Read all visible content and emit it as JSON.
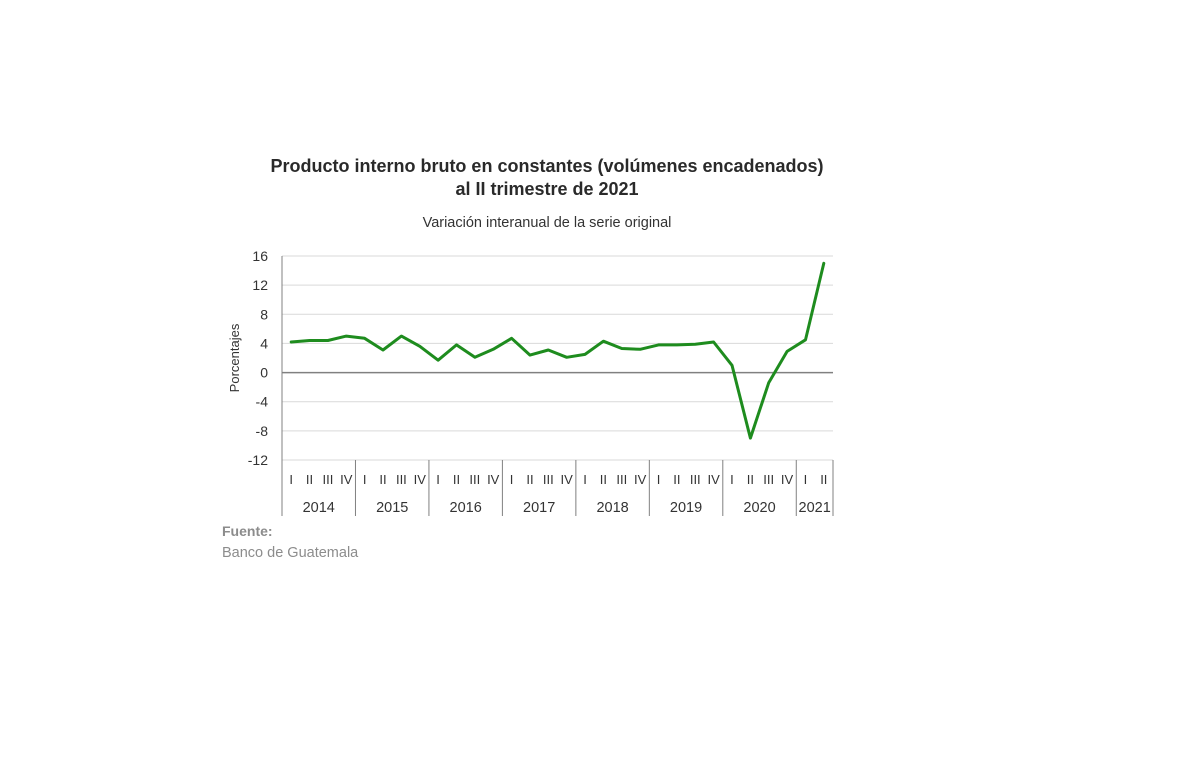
{
  "chart_data": {
    "type": "line",
    "title_line1": "Producto interno bruto en constantes (volúmenes encadenados)",
    "title_line2": "al II trimestre de 2021",
    "subtitle": "Variación interanual de la serie original",
    "ylabel": "Porcentajes",
    "ylim": [
      -12,
      16
    ],
    "yticks": [
      "16",
      "12",
      "8",
      "4",
      "0",
      "-4",
      "-8",
      "-12"
    ],
    "quarter_labels": [
      "I",
      "II",
      "III",
      "IV"
    ],
    "years": [
      "2014",
      "2015",
      "2016",
      "2017",
      "2018",
      "2019",
      "2020",
      "2021"
    ],
    "x": [
      "2014-I",
      "2014-II",
      "2014-III",
      "2014-IV",
      "2015-I",
      "2015-II",
      "2015-III",
      "2015-IV",
      "2016-I",
      "2016-II",
      "2016-III",
      "2016-IV",
      "2017-I",
      "2017-II",
      "2017-III",
      "2017-IV",
      "2018-I",
      "2018-II",
      "2018-III",
      "2018-IV",
      "2019-I",
      "2019-II",
      "2019-III",
      "2019-IV",
      "2020-I",
      "2020-II",
      "2020-III",
      "2020-IV",
      "2021-I",
      "2021-II"
    ],
    "series": [
      {
        "values": [
          4.2,
          4.4,
          4.4,
          5.0,
          4.7,
          3.1,
          5.0,
          3.6,
          1.7,
          3.8,
          2.1,
          3.2,
          4.7,
          2.4,
          3.1,
          2.1,
          2.5,
          4.3,
          3.3,
          3.2,
          3.8,
          3.8,
          3.9,
          4.2,
          1.0,
          -9.0,
          -1.4,
          2.9,
          4.5,
          15.0
        ],
        "color": "#1e8c1e"
      }
    ],
    "zero_line_color": "#808080",
    "grid": true
  },
  "source": {
    "label": "Fuente:",
    "value": "Banco de Guatemala"
  }
}
